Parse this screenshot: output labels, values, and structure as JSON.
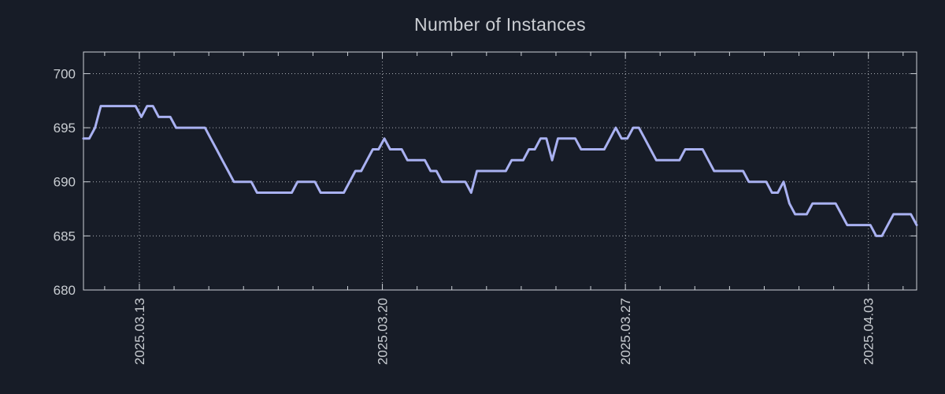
{
  "chart_data": {
    "type": "line",
    "title": "Number of Instances",
    "xlabel": "",
    "ylabel": "",
    "grid": true,
    "legend": false,
    "ylim": [
      680,
      702
    ],
    "y_ticks": [
      680,
      685,
      690,
      695,
      700
    ],
    "x_axis": {
      "tick_labels": [
        "2025.03.13",
        "2025.03.20",
        "2025.03.27",
        "2025.04.03"
      ],
      "tick_day_offsets": [
        0,
        7,
        14,
        21
      ],
      "minor_tick_every_days": 1,
      "start_day_offset": -1.61,
      "end_day_offset": 22.39
    },
    "sample_interval_hours": 4,
    "series": [
      {
        "name": "Number of Instances",
        "color": "#a9b1f1",
        "values": [
          694,
          694,
          695,
          697,
          697,
          697,
          697,
          697,
          697,
          697,
          696,
          697,
          697,
          696,
          696,
          696,
          695,
          695,
          695,
          695,
          695,
          695,
          694,
          693,
          692,
          691,
          690,
          690,
          690,
          690,
          689,
          689,
          689,
          689,
          689,
          689,
          689,
          690,
          690,
          690,
          690,
          689,
          689,
          689,
          689,
          689,
          690,
          691,
          691,
          692,
          693,
          693,
          694,
          693,
          693,
          693,
          692,
          692,
          692,
          692,
          691,
          691,
          690,
          690,
          690,
          690,
          690,
          689,
          691,
          691,
          691,
          691,
          691,
          691,
          692,
          692,
          692,
          693,
          693,
          694,
          694,
          692,
          694,
          694,
          694,
          694,
          693,
          693,
          693,
          693,
          693,
          694,
          695,
          694,
          694,
          695,
          695,
          694,
          693,
          692,
          692,
          692,
          692,
          692,
          693,
          693,
          693,
          693,
          692,
          691,
          691,
          691,
          691,
          691,
          691,
          690,
          690,
          690,
          690,
          689,
          689,
          690,
          688,
          687,
          687,
          687,
          688,
          688,
          688,
          688,
          688,
          687,
          686,
          686,
          686,
          686,
          686,
          685,
          685,
          686,
          687,
          687,
          687,
          687,
          686
        ]
      }
    ]
  },
  "colors": {
    "background": "#171c27",
    "line": "#a9b1f1",
    "grid": "#cdd2d8",
    "axis": "#ccd1d7",
    "text": "#c9cdd2"
  }
}
